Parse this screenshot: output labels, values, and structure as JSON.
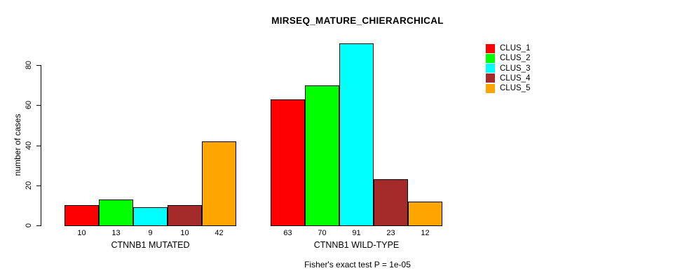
{
  "chart_data": {
    "type": "bar",
    "title": "MIRSEQ_MATURE_CHIERARCHICAL",
    "xlabel": "",
    "ylabel": "number of cases",
    "yticks": [
      0,
      20,
      40,
      60,
      80
    ],
    "ylim": [
      0,
      91
    ],
    "grid": false,
    "legend_position": "right",
    "bar_border_color": "#000000",
    "categories": [
      "CTNNB1 MUTATED",
      "CTNNB1 WILD-TYPE"
    ],
    "series": [
      {
        "name": "CLUS_1",
        "color": "#ff0000",
        "values": [
          10,
          63
        ]
      },
      {
        "name": "CLUS_2",
        "color": "#00ff00",
        "values": [
          13,
          70
        ]
      },
      {
        "name": "CLUS_3",
        "color": "#00ffff",
        "values": [
          9,
          91
        ]
      },
      {
        "name": "CLUS_4",
        "color": "#a52a2a",
        "values": [
          10,
          23
        ]
      },
      {
        "name": "CLUS_5",
        "color": "#ffa500",
        "values": [
          42,
          12
        ]
      }
    ],
    "bar_value_labels": {
      "CTNNB1 MUTATED": [
        10,
        13,
        9,
        10,
        42
      ],
      "CTNNB1 WILD-TYPE": [
        63,
        70,
        91,
        23,
        12
      ]
    },
    "annotation": "Fisher's exact test P = 1e-05"
  }
}
